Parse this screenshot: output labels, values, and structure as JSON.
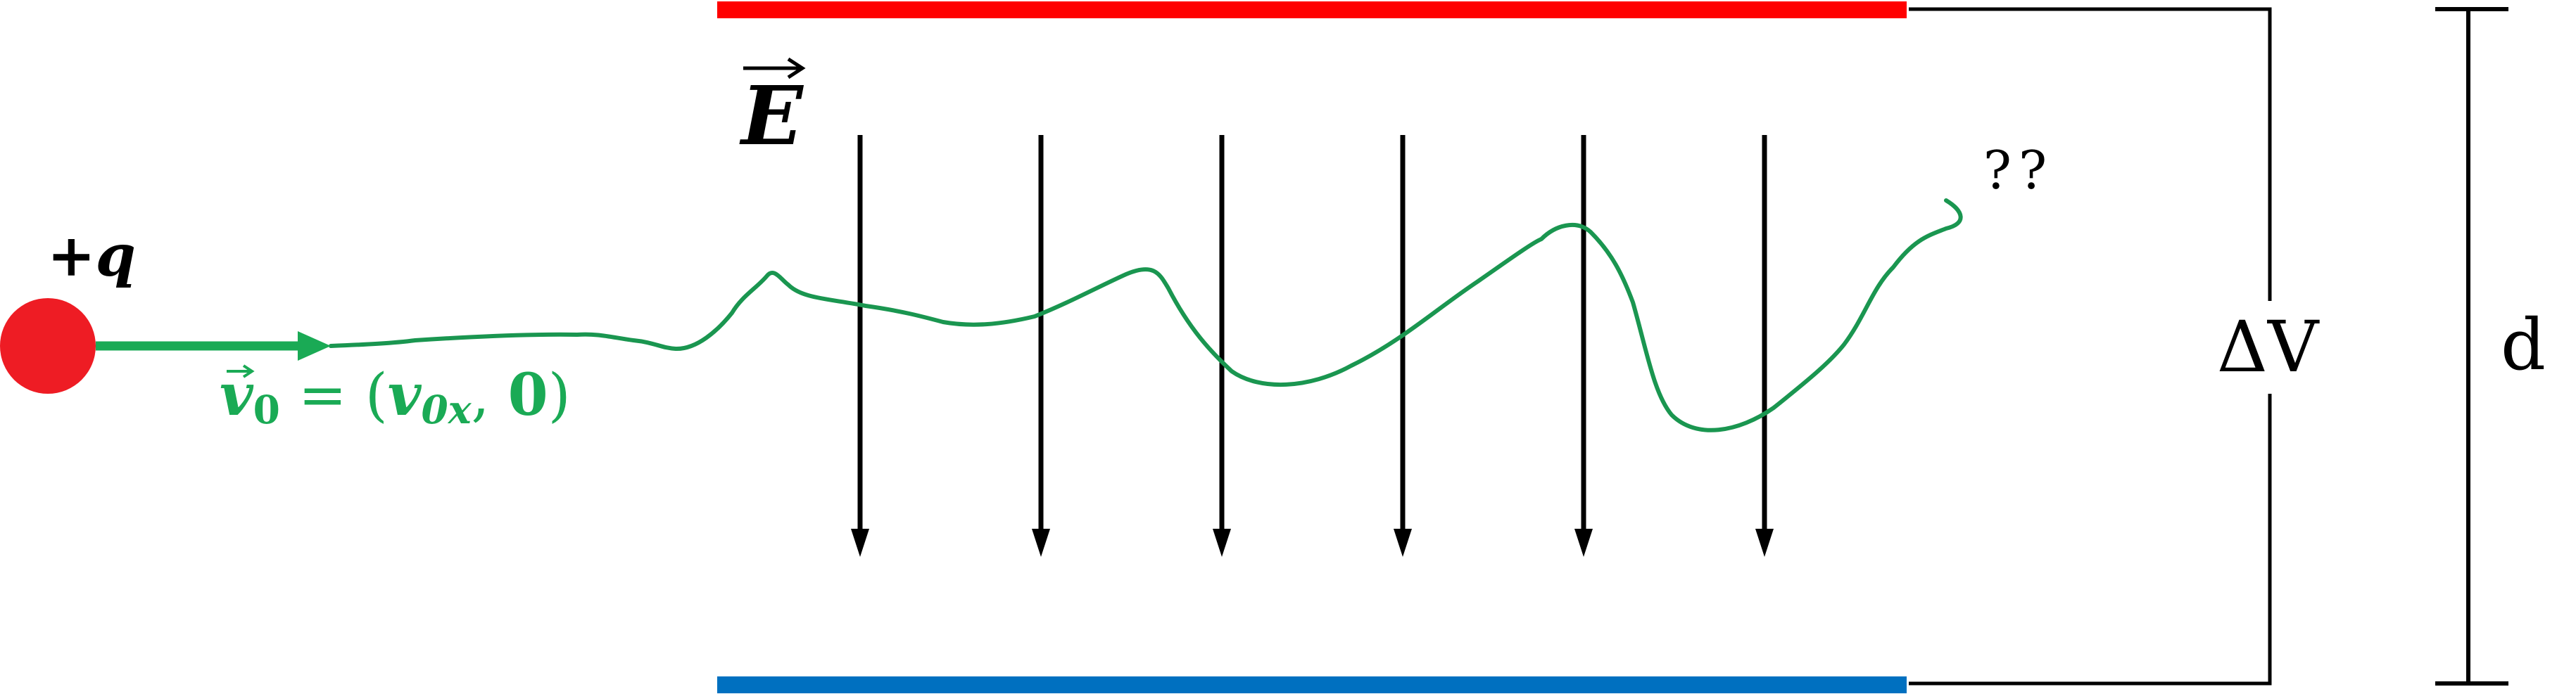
{
  "diagram": {
    "particle": {
      "charge_label": "+q",
      "color": "#ee1c24"
    },
    "velocity": {
      "label": "v⃗₀ = (v₀ₓ, 0)",
      "label_parts": {
        "vec": "v",
        "sub0": "0",
        "equals": " = (",
        "v": "v",
        "sub0x": "0x",
        "comma": ", ",
        "zero": "0",
        "close": ")"
      },
      "color": "#1aaa55"
    },
    "field": {
      "label": "E",
      "arrow_count": 6,
      "color": "#000000"
    },
    "plates": {
      "top_color": "#ff0000",
      "bottom_color": "#0070c0"
    },
    "trajectory": {
      "color": "#1a9650",
      "question_label": "??"
    },
    "circuit": {
      "potential_label": "ΔV"
    },
    "dimension": {
      "label": "d"
    }
  }
}
